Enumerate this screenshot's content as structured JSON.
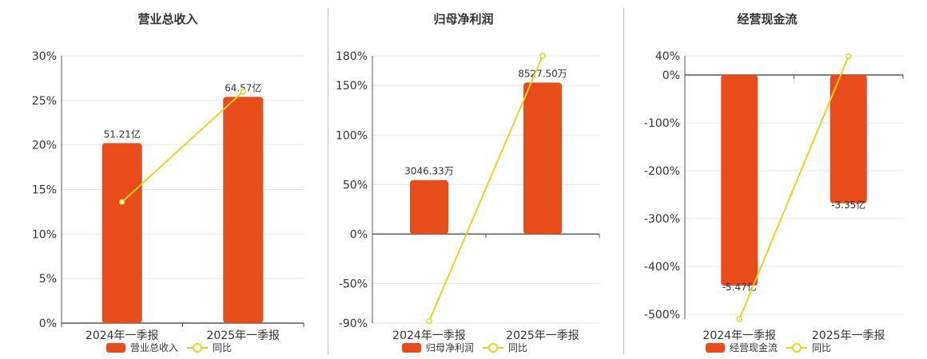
{
  "colors": {
    "bar": "#E84C1A",
    "line": "#F2CF1D",
    "grid": "#e6e6e6",
    "axis": "#555555",
    "text": "#333333"
  },
  "chart_data": [
    {
      "type": "bar",
      "title": "营业总收入",
      "categories": [
        "2024年一季报",
        "2025年一季报"
      ],
      "ylim": [
        0,
        30
      ],
      "yticks": [
        0,
        5,
        10,
        15,
        20,
        25,
        30
      ],
      "yticklabels": [
        "0%",
        "5%",
        "10%",
        "15%",
        "20%",
        "25%",
        "30%"
      ],
      "bar_values": [
        20.2,
        25.4
      ],
      "bar_labels": [
        "51.21亿",
        "64.57亿"
      ],
      "line_values": [
        13.6,
        26.0
      ],
      "legend": [
        "营业总收入",
        "同比"
      ]
    },
    {
      "type": "bar",
      "title": "归母净利润",
      "categories": [
        "2024年一季报",
        "2025年一季报"
      ],
      "ylim": [
        -90,
        180
      ],
      "yticks": [
        -90,
        -50,
        0,
        50,
        100,
        150,
        180
      ],
      "yticklabels": [
        "-90%",
        "-50%",
        "0%",
        "50%",
        "100%",
        "150%",
        "180%"
      ],
      "bar_values": [
        54.5,
        153.0
      ],
      "bar_labels": [
        "3046.33万",
        "8527.50万"
      ],
      "line_values": [
        -88.0,
        180.0
      ],
      "legend": [
        "归母净利润",
        "同比"
      ]
    },
    {
      "type": "bar",
      "title": "经营现金流",
      "categories": [
        "2024年一季报",
        "2025年一季报"
      ],
      "ylim": [
        -510,
        40
      ],
      "yticks": [
        -500,
        -400,
        -300,
        -200,
        -100,
        0,
        40
      ],
      "yticklabels": [
        "-500%",
        "-400%",
        "-300%",
        "-200%",
        "-100%",
        "0%",
        "40%"
      ],
      "bar_values": [
        -440.0,
        -268.0
      ],
      "bar_labels": [
        "-5.47亿",
        "-3.35亿"
      ],
      "line_values": [
        -510.0,
        39.0
      ],
      "legend": [
        "经营现金流",
        "同比"
      ]
    }
  ]
}
